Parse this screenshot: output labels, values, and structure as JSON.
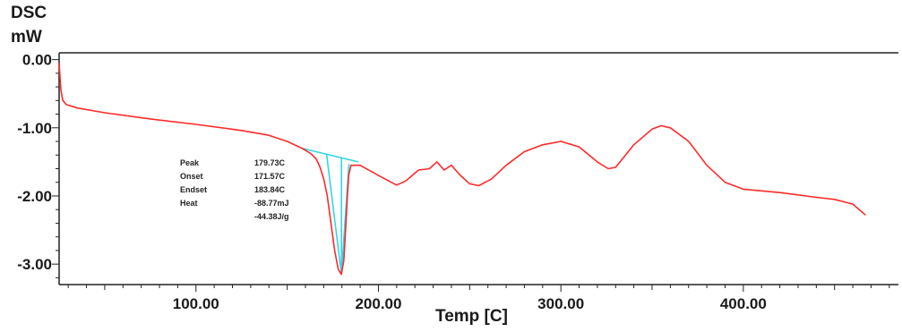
{
  "chart_data": {
    "type": "line",
    "ylabel_line1": "DSC",
    "ylabel_line2": "mW",
    "xlabel": "Temp [C]",
    "xlim": [
      25,
      485
    ],
    "ylim": [
      -3.3,
      0.1
    ],
    "x_ticks": [
      100,
      200,
      300,
      400
    ],
    "x_tick_labels": [
      "100.00",
      "200.00",
      "300.00",
      "400.00"
    ],
    "y_ticks": [
      0,
      -1,
      -2,
      -3
    ],
    "y_tick_labels": [
      "0.00",
      "-1.00",
      "-2.00",
      "-3.00"
    ],
    "grid": false,
    "series": [
      {
        "color": "#ff2a2a",
        "points": [
          [
            25,
            -0.05
          ],
          [
            26,
            -0.45
          ],
          [
            27,
            -0.6
          ],
          [
            29,
            -0.66
          ],
          [
            35,
            -0.71
          ],
          [
            50,
            -0.78
          ],
          [
            75,
            -0.87
          ],
          [
            100,
            -0.95
          ],
          [
            125,
            -1.04
          ],
          [
            140,
            -1.11
          ],
          [
            150,
            -1.2
          ],
          [
            158,
            -1.3
          ],
          [
            163,
            -1.38
          ],
          [
            166,
            -1.46
          ],
          [
            168,
            -1.58
          ],
          [
            170,
            -1.75
          ],
          [
            172,
            -2.0
          ],
          [
            174,
            -2.4
          ],
          [
            176,
            -2.8
          ],
          [
            178,
            -3.08
          ],
          [
            179.7,
            -3.15
          ],
          [
            181,
            -2.95
          ],
          [
            182,
            -2.5
          ],
          [
            183,
            -2.0
          ],
          [
            183.8,
            -1.68
          ],
          [
            185,
            -1.55
          ],
          [
            190,
            -1.55
          ],
          [
            200,
            -1.7
          ],
          [
            210,
            -1.84
          ],
          [
            215,
            -1.78
          ],
          [
            222,
            -1.62
          ],
          [
            228,
            -1.6
          ],
          [
            232,
            -1.5
          ],
          [
            236,
            -1.62
          ],
          [
            240,
            -1.55
          ],
          [
            245,
            -1.7
          ],
          [
            250,
            -1.82
          ],
          [
            255,
            -1.85
          ],
          [
            262,
            -1.75
          ],
          [
            270,
            -1.55
          ],
          [
            280,
            -1.35
          ],
          [
            290,
            -1.25
          ],
          [
            300,
            -1.2
          ],
          [
            310,
            -1.28
          ],
          [
            320,
            -1.5
          ],
          [
            326,
            -1.6
          ],
          [
            330,
            -1.58
          ],
          [
            340,
            -1.25
          ],
          [
            350,
            -1.02
          ],
          [
            355,
            -0.97
          ],
          [
            360,
            -1.0
          ],
          [
            370,
            -1.2
          ],
          [
            380,
            -1.55
          ],
          [
            390,
            -1.8
          ],
          [
            400,
            -1.9
          ],
          [
            420,
            -1.95
          ],
          [
            440,
            -2.02
          ],
          [
            450,
            -2.05
          ],
          [
            460,
            -2.12
          ],
          [
            467,
            -2.28
          ]
        ]
      }
    ],
    "baseline": {
      "color": "#33d6e8",
      "lines": [
        [
          [
            158,
            -1.3
          ],
          [
            189,
            -1.5
          ]
        ],
        [
          [
            171.57,
            -1.38
          ],
          [
            179.73,
            -3.15
          ]
        ],
        [
          [
            183.84,
            -1.53
          ],
          [
            179.73,
            -3.15
          ]
        ],
        [
          [
            179.73,
            -1.44
          ],
          [
            179.73,
            -3.15
          ]
        ]
      ]
    },
    "annotations": [
      {
        "label": "Peak",
        "value": "179.73C"
      },
      {
        "label": "Onset",
        "value": "171.57C"
      },
      {
        "label": "Endset",
        "value": "183.84C"
      },
      {
        "label": "Heat",
        "value": "-88.77mJ"
      },
      {
        "label": "",
        "value": "-44.38J/g"
      }
    ]
  }
}
